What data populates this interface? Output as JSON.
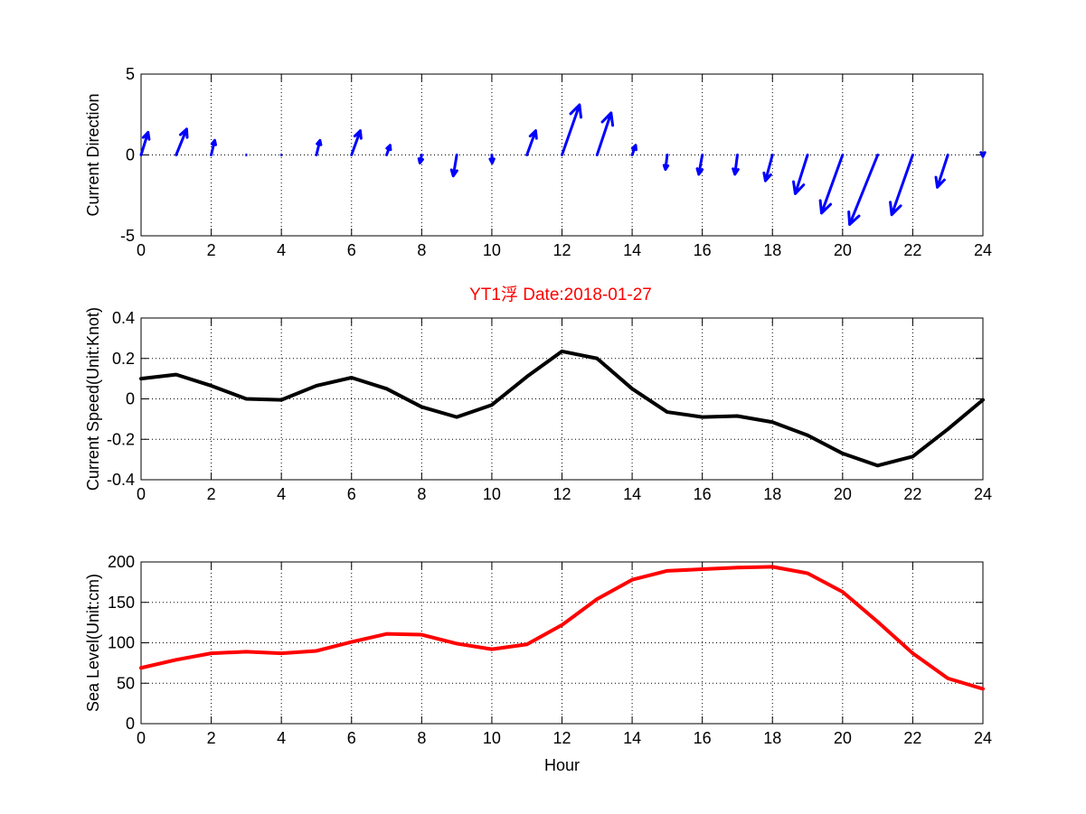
{
  "figure_title": "YT1浮    Date:2018-01-27",
  "colors": {
    "direction": "#0000ff",
    "speed": "#000000",
    "sea_level": "#ff0000",
    "title": "#ff0000"
  },
  "chart_data": [
    {
      "type": "quiver",
      "title": "",
      "xlabel": "",
      "ylabel": "Current Direction",
      "xlim": [
        0,
        24
      ],
      "ylim": [
        -5,
        5
      ],
      "xticks": [
        "0",
        "2",
        "4",
        "6",
        "8",
        "10",
        "12",
        "14",
        "16",
        "18",
        "20",
        "22",
        "24"
      ],
      "yticks": [
        "-5",
        "0",
        "5"
      ],
      "grid": true,
      "x": [
        0,
        1,
        2,
        3,
        4,
        5,
        6,
        7,
        8,
        9,
        10,
        11,
        12,
        13,
        14,
        15,
        16,
        17,
        18,
        19,
        20,
        21,
        22,
        23,
        24
      ],
      "u": [
        0.2,
        0.3,
        0.1,
        0,
        0.01,
        0.1,
        0.25,
        0.1,
        -0.05,
        -0.1,
        0.01,
        0.25,
        0.5,
        0.4,
        0.1,
        -0.05,
        -0.1,
        -0.07,
        -0.2,
        -0.35,
        -0.6,
        -0.8,
        -0.6,
        -0.3,
        0
      ],
      "v": [
        1.4,
        1.6,
        0.9,
        0,
        -0.05,
        0.9,
        1.5,
        0.6,
        -0.5,
        -1.3,
        -0.5,
        1.5,
        3.1,
        2.6,
        0.6,
        -0.9,
        -1.2,
        -1.2,
        -1.6,
        -2.4,
        -3.6,
        -4.3,
        -3.7,
        -2.0,
        -0.1
      ]
    },
    {
      "type": "line",
      "title": "",
      "xlabel": "",
      "ylabel": "Current Speed(Unit:Knot)",
      "xlim": [
        0,
        24
      ],
      "ylim": [
        -0.4,
        0.4
      ],
      "xticks": [
        "0",
        "2",
        "4",
        "6",
        "8",
        "10",
        "12",
        "14",
        "16",
        "18",
        "20",
        "22",
        "24"
      ],
      "yticks": [
        "-0.4",
        "-0.2",
        "0",
        "0.2",
        "0.4"
      ],
      "grid": true,
      "x": [
        0,
        1,
        2,
        3,
        4,
        5,
        6,
        7,
        8,
        9,
        10,
        11,
        12,
        13,
        14,
        15,
        16,
        17,
        18,
        19,
        20,
        21,
        22,
        23,
        24
      ],
      "y": [
        0.1,
        0.12,
        0.065,
        0.0,
        -0.005,
        0.065,
        0.105,
        0.05,
        -0.04,
        -0.09,
        -0.03,
        0.11,
        0.235,
        0.2,
        0.05,
        -0.065,
        -0.09,
        -0.085,
        -0.115,
        -0.18,
        -0.27,
        -0.33,
        -0.285,
        -0.15,
        -0.005
      ]
    },
    {
      "type": "line",
      "title": "",
      "xlabel": "Hour",
      "ylabel": "Sea Level(Unit:cm)",
      "xlim": [
        0,
        24
      ],
      "ylim": [
        0,
        200
      ],
      "xticks": [
        "0",
        "2",
        "4",
        "6",
        "8",
        "10",
        "12",
        "14",
        "16",
        "18",
        "20",
        "22",
        "24"
      ],
      "yticks": [
        "0",
        "50",
        "100",
        "150",
        "200"
      ],
      "grid": true,
      "x": [
        0,
        1,
        2,
        3,
        4,
        5,
        6,
        7,
        8,
        9,
        10,
        11,
        12,
        13,
        14,
        15,
        16,
        17,
        18,
        19,
        20,
        21,
        22,
        23,
        24
      ],
      "y": [
        69,
        79,
        87,
        89,
        87,
        90,
        101,
        111,
        110,
        99,
        92,
        98,
        122,
        154,
        178,
        189,
        191,
        193,
        194,
        186,
        163,
        126,
        87,
        56,
        43
      ]
    }
  ]
}
